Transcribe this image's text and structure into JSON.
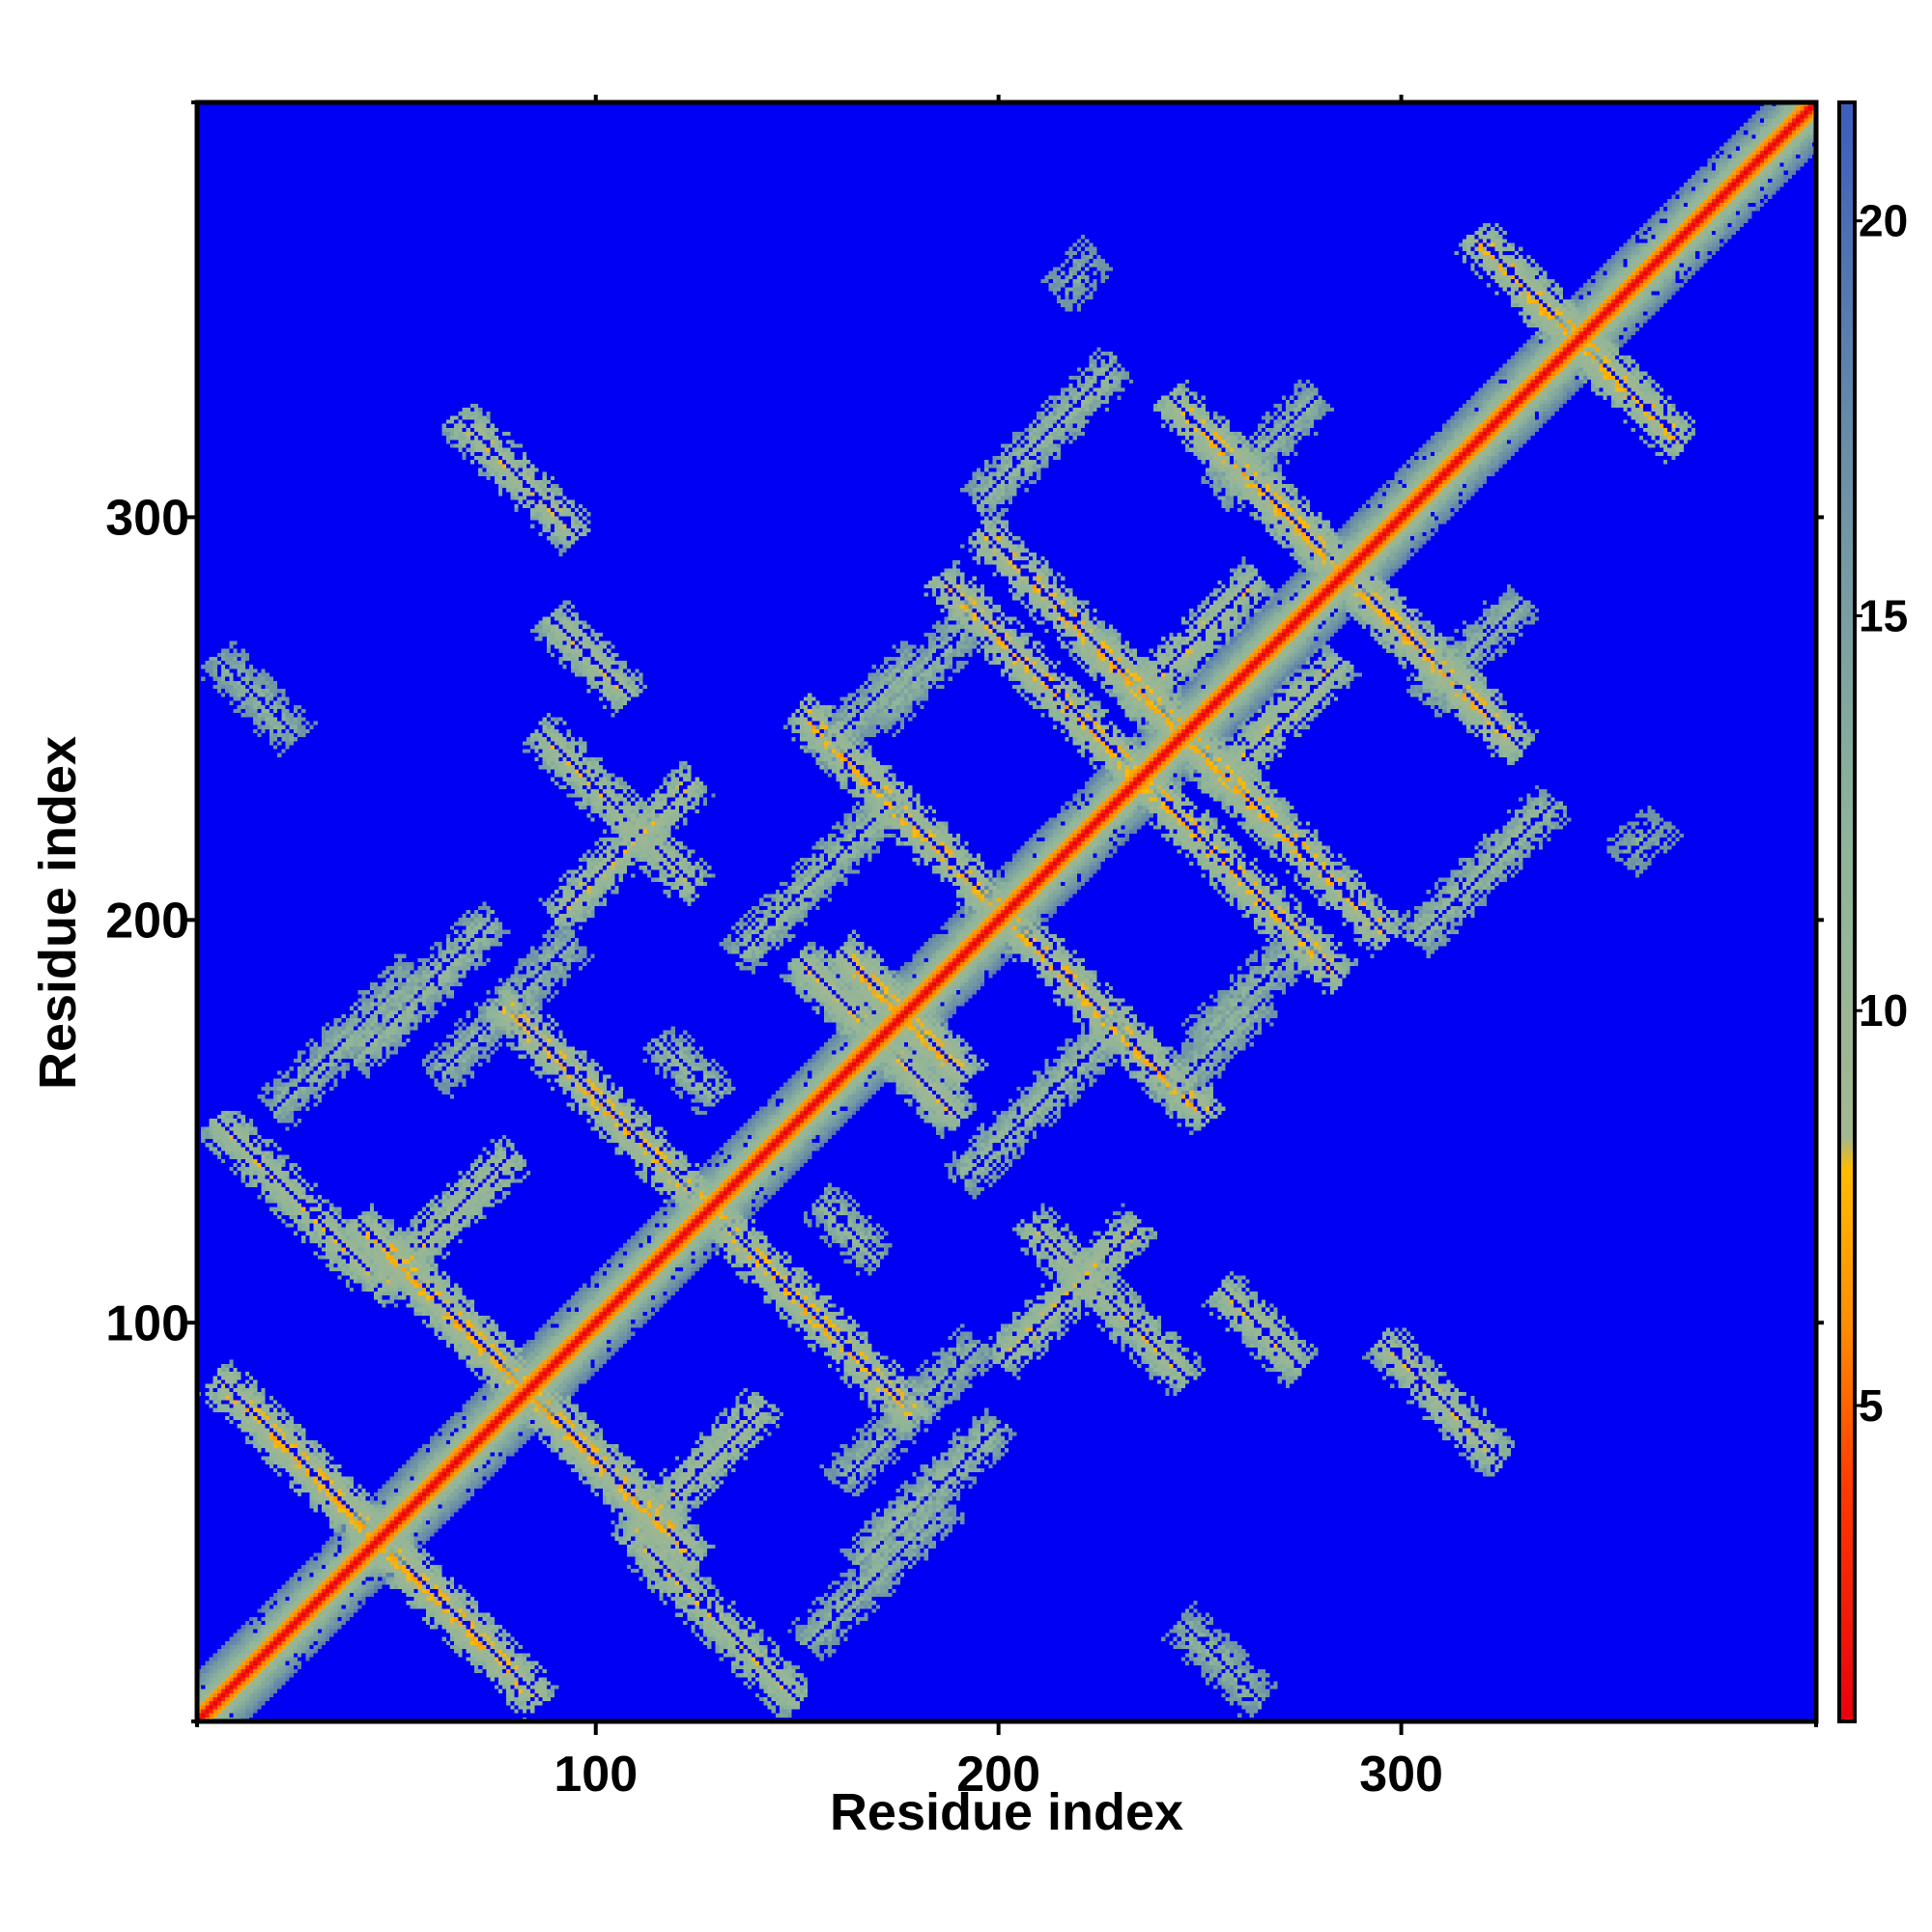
{
  "chart_data": {
    "type": "heatmap",
    "title": "",
    "xlabel": "Residue index",
    "ylabel": "Residue index",
    "xlim": [
      1,
      403
    ],
    "ylim": [
      1,
      403
    ],
    "x_ticks": [
      100,
      200,
      300
    ],
    "y_ticks": [
      100,
      200,
      300
    ],
    "x_tick_labels": [
      "100",
      "200",
      "300"
    ],
    "y_tick_labels": [
      "100",
      "200",
      "300"
    ],
    "colorbar": {
      "range": [
        1,
        21.5
      ],
      "ticks": [
        5,
        10,
        15,
        20
      ],
      "tick_labels": [
        "5",
        "10",
        "15",
        "20"
      ],
      "placement": "right",
      "stops": [
        {
          "value": 1,
          "color": "#e8000e"
        },
        {
          "value": 4,
          "color": "#ff3a00"
        },
        {
          "value": 6,
          "color": "#ff8c00"
        },
        {
          "value": 8,
          "color": "#ffbb00"
        },
        {
          "value": 8.4,
          "color": "#a2b790"
        },
        {
          "value": 12,
          "color": "#8fb59a"
        },
        {
          "value": 17,
          "color": "#6a8fa7"
        },
        {
          "value": 21.5,
          "color": "#3c5dbd"
        }
      ]
    },
    "background_value": 21.5,
    "background_color": "#0000f5",
    "is_symmetric": true,
    "main_diagonal": {
      "from": 1,
      "to": 403
    },
    "contact_bands": [
      {
        "kind": "antiparallel",
        "center_sum": 91,
        "start": 5,
        "end": 75,
        "mid_value": 7
      },
      {
        "kind": "antiparallel",
        "center_sum": 165,
        "start": 45,
        "end": 125,
        "mid_value": 7
      },
      {
        "kind": "parallel",
        "offset": 62,
        "start": 45,
        "end": 80,
        "mid_value": 8
      },
      {
        "kind": "antiparallel",
        "center_sum": 155,
        "start": 110,
        "end": 150,
        "mid_value": 8
      },
      {
        "kind": "antiparallel",
        "center_sum": 255,
        "start": 75,
        "end": 130,
        "mid_value": 7
      },
      {
        "kind": "parallel",
        "offset": 125,
        "start": 40,
        "end": 75,
        "mid_value": 10
      },
      {
        "kind": "parallel",
        "offset": 132,
        "start": 20,
        "end": 55,
        "mid_value": 11
      },
      {
        "kind": "antiparallel",
        "center_sum": 352,
        "start": 160,
        "end": 190,
        "mid_value": 7
      },
      {
        "kind": "antiparallel",
        "center_sum": 340,
        "start": 150,
        "end": 190,
        "mid_value": 8
      },
      {
        "kind": "antiparallel",
        "center_sum": 332,
        "start": 85,
        "end": 125,
        "mid_value": 8
      },
      {
        "kind": "parallel",
        "offset": 55,
        "start": 135,
        "end": 175,
        "mid_value": 10
      },
      {
        "kind": "parallel",
        "offset": 110,
        "start": 90,
        "end": 125,
        "mid_value": 8
      },
      {
        "kind": "parallel",
        "offset": 100,
        "start": 60,
        "end": 95,
        "mid_value": 11
      },
      {
        "kind": "antiparallel",
        "center_sum": 492,
        "start": 195,
        "end": 270,
        "mid_value": 7
      },
      {
        "kind": "antiparallel",
        "center_sum": 572,
        "start": 250,
        "end": 330,
        "mid_value": 7
      },
      {
        "kind": "antiparallel",
        "center_sum": 470,
        "start": 230,
        "end": 285,
        "mid_value": 7
      },
      {
        "kind": "parallel",
        "offset": 108,
        "start": 195,
        "end": 230,
        "mid_value": 10
      },
      {
        "kind": "parallel",
        "offset": 20,
        "start": 232,
        "end": 265,
        "mid_value": 8
      },
      {
        "kind": "antiparallel",
        "center_sum": 402,
        "start": 150,
        "end": 205,
        "mid_value": 7
      },
      {
        "kind": "antiparallel",
        "center_sum": 363,
        "start": 255,
        "end": 275,
        "mid_value": 8
      },
      {
        "kind": "antiparallel",
        "center_sum": 390,
        "start": 295,
        "end": 325,
        "mid_value": 8
      },
      {
        "kind": "parallel",
        "offset": 50,
        "start": 255,
        "end": 280,
        "mid_value": 11
      },
      {
        "kind": "parallel",
        "offset": 103,
        "start": 315,
        "end": 345,
        "mid_value": 11
      },
      {
        "kind": "parallel",
        "offset": 85,
        "start": 155,
        "end": 180,
        "mid_value": 11
      },
      {
        "kind": "parallel",
        "offset": 80,
        "start": 170,
        "end": 195,
        "mid_value": 11
      },
      {
        "kind": "antiparallel",
        "center_sum": 285,
        "start": 155,
        "end": 170,
        "mid_value": 10
      },
      {
        "kind": "antiparallel",
        "center_sum": 270,
        "start": 245,
        "end": 265,
        "mid_value": 11
      },
      {
        "kind": "antiparallel",
        "center_sum": 215,
        "start": 270,
        "end": 285,
        "mid_value": 11
      },
      {
        "kind": "parallel",
        "offset": 140,
        "start": 215,
        "end": 225,
        "mid_value": 12
      },
      {
        "kind": "parallel",
        "offset": 105,
        "start": 310,
        "end": 320,
        "mid_value": 12
      },
      {
        "kind": "antiparallel",
        "center_sum": 688,
        "start": 330,
        "end": 370,
        "mid_value": 7
      }
    ]
  }
}
